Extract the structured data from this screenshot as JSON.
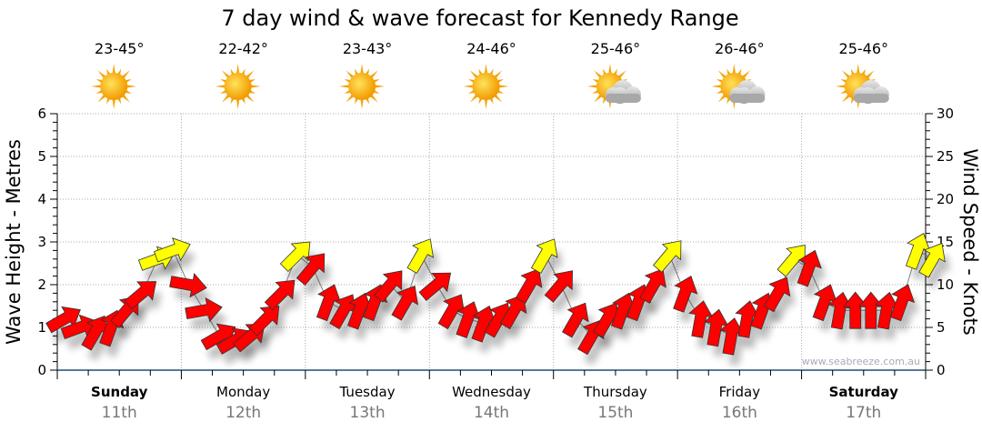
{
  "chart_data": {
    "type": "line",
    "title": "7 day wind & wave forecast for Kennedy Range",
    "ylabel": "Wave Height - Metres",
    "y2label": "Wind Speed - Knots",
    "ylim": [
      0,
      6
    ],
    "y2lim": [
      0,
      30
    ],
    "yticks": [
      "0",
      "1",
      "2",
      "3",
      "4",
      "5",
      "6"
    ],
    "y2ticks": [
      "0",
      "5",
      "10",
      "15",
      "20",
      "25",
      "30"
    ],
    "grid": true,
    "watermark": "www.seabreeze.com.au",
    "days": [
      {
        "day": "Sunday",
        "date": "11th",
        "temp": "23-45°",
        "icon": "sunny-icon",
        "bold": true
      },
      {
        "day": "Monday",
        "date": "12th",
        "temp": "22-42°",
        "icon": "sunny-icon",
        "bold": false
      },
      {
        "day": "Tuesday",
        "date": "13th",
        "temp": "23-43°",
        "icon": "sunny-icon",
        "bold": false
      },
      {
        "day": "Wednesday",
        "date": "14th",
        "temp": "24-46°",
        "icon": "sunny-icon",
        "bold": false
      },
      {
        "day": "Thursday",
        "date": "15th",
        "temp": "25-46°",
        "icon": "partly-cloudy-icon",
        "bold": false
      },
      {
        "day": "Friday",
        "date": "16th",
        "temp": "26-46°",
        "icon": "partly-cloudy-icon",
        "bold": false
      },
      {
        "day": "Saturday",
        "date": "17th",
        "temp": "25-46°",
        "icon": "partly-cloudy-icon",
        "bold": true
      }
    ],
    "wind_series": {
      "name": "Wind speed (knots), 3-hourly",
      "knots": [
        6,
        5,
        4.5,
        5,
        7,
        9,
        13,
        14,
        10,
        7,
        4,
        3.5,
        4,
        6,
        9,
        13.5,
        12,
        8,
        7,
        7,
        8,
        10,
        8,
        13.5,
        10,
        7,
        6,
        5.5,
        6,
        7,
        10,
        13.5,
        10,
        6,
        4,
        6,
        7,
        8,
        10,
        13.5,
        9,
        6,
        5,
        4,
        6,
        7,
        9,
        13,
        12,
        8,
        7,
        7,
        7,
        7,
        8,
        14,
        13
      ],
      "direction_deg": [
        60,
        70,
        30,
        20,
        40,
        50,
        70,
        70,
        100,
        80,
        60,
        60,
        50,
        45,
        45,
        45,
        40,
        20,
        30,
        20,
        20,
        40,
        30,
        30,
        50,
        30,
        20,
        20,
        30,
        30,
        30,
        30,
        40,
        30,
        30,
        30,
        20,
        20,
        30,
        40,
        20,
        10,
        10,
        10,
        10,
        20,
        30,
        40,
        20,
        20,
        10,
        0,
        0,
        10,
        20,
        20,
        30
      ]
    },
    "colors": {
      "calm": "#ff0000",
      "strong": "#ffff00",
      "axis": "#1f4e79",
      "grid": "#aaaaaa"
    },
    "strong_threshold_knots": 12.5
  }
}
